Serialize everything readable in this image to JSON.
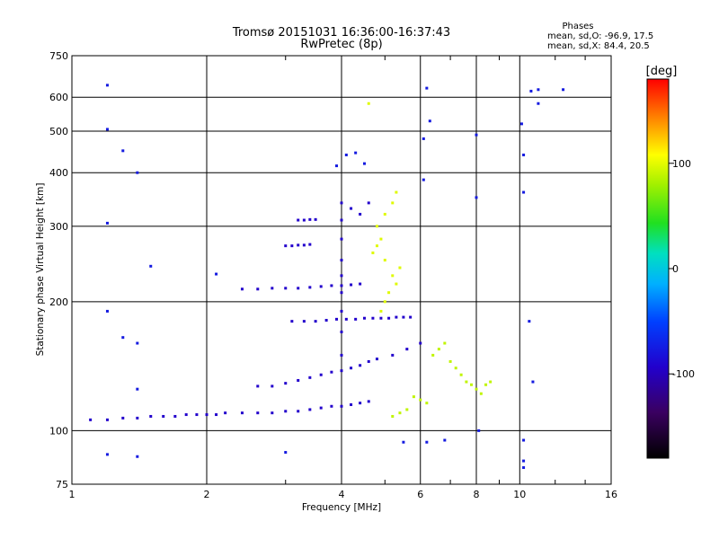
{
  "chart_data": {
    "type": "scatter",
    "title": "Tromsø 20151031 16:36:00-16:37:43",
    "subtitle": "RwPretec (8p)",
    "stats": {
      "header": "Phases",
      "line1": "mean, sd,O: -96.9, 17.5",
      "line2": "mean, sd,X:  84.4, 20.5"
    },
    "xlabel": "Frequency [MHz]",
    "ylabel": "Stationary phase Virtual Height [km]",
    "xscale": "log",
    "yscale": "log",
    "xlim": [
      1,
      16
    ],
    "ylim": [
      75,
      750
    ],
    "xticks": [
      1,
      2,
      4,
      6,
      8,
      10,
      16
    ],
    "xtick_labels": [
      "1",
      "2",
      "4",
      "6",
      "8",
      "10",
      "16"
    ],
    "yticks": [
      75,
      100,
      200,
      300,
      400,
      500,
      600,
      750
    ],
    "ytick_labels": [
      "75",
      "100",
      "200",
      "300",
      "400",
      "500",
      "600",
      "750"
    ],
    "grid": true,
    "colorbar": {
      "label": "[deg]",
      "range": [
        -180,
        180
      ],
      "ticks": [
        100,
        0,
        -100
      ],
      "tick_labels": [
        "100",
        "0",
        "-100"
      ]
    },
    "clusters": [
      {
        "name": "e-layer-trace",
        "phase": -100,
        "points": [
          [
            1.1,
            106
          ],
          [
            1.2,
            106
          ],
          [
            1.3,
            107
          ],
          [
            1.4,
            107
          ],
          [
            1.5,
            108
          ],
          [
            1.6,
            108
          ],
          [
            1.7,
            108
          ],
          [
            1.8,
            109
          ],
          [
            1.9,
            109
          ],
          [
            2.0,
            109
          ],
          [
            2.1,
            109
          ],
          [
            2.2,
            110
          ],
          [
            2.4,
            110
          ],
          [
            2.6,
            110
          ],
          [
            2.8,
            110
          ],
          [
            3.0,
            111
          ],
          [
            3.2,
            111
          ],
          [
            3.4,
            112
          ],
          [
            3.6,
            113
          ],
          [
            3.8,
            114
          ],
          [
            4.0,
            114
          ],
          [
            4.2,
            115
          ],
          [
            4.4,
            116
          ],
          [
            4.6,
            117
          ]
        ]
      },
      {
        "name": "e-layer-echo-2",
        "phase": -100,
        "points": [
          [
            2.6,
            127
          ],
          [
            2.8,
            127
          ],
          [
            3.0,
            129
          ],
          [
            3.2,
            131
          ],
          [
            3.4,
            133
          ],
          [
            3.6,
            135
          ],
          [
            3.8,
            137
          ],
          [
            4.0,
            138
          ],
          [
            4.2,
            140
          ],
          [
            4.4,
            142
          ],
          [
            4.6,
            145
          ],
          [
            4.8,
            147
          ],
          [
            5.2,
            150
          ],
          [
            5.6,
            155
          ],
          [
            6.0,
            160
          ]
        ]
      },
      {
        "name": "f-layer-trace-180",
        "phase": -100,
        "points": [
          [
            3.1,
            180
          ],
          [
            3.3,
            180
          ],
          [
            3.5,
            180
          ],
          [
            3.7,
            181
          ],
          [
            3.9,
            182
          ],
          [
            4.1,
            182
          ],
          [
            4.3,
            182
          ],
          [
            4.5,
            183
          ],
          [
            4.7,
            183
          ],
          [
            4.9,
            183
          ],
          [
            5.1,
            183
          ],
          [
            5.3,
            184
          ],
          [
            5.5,
            184
          ],
          [
            5.7,
            184
          ]
        ]
      },
      {
        "name": "f-layer-trace-215",
        "phase": -100,
        "points": [
          [
            2.4,
            214
          ],
          [
            2.6,
            214
          ],
          [
            2.8,
            215
          ],
          [
            3.0,
            215
          ],
          [
            3.2,
            215
          ],
          [
            3.4,
            216
          ],
          [
            3.6,
            217
          ],
          [
            3.8,
            218
          ],
          [
            4.0,
            218
          ],
          [
            4.2,
            219
          ],
          [
            4.4,
            220
          ]
        ]
      },
      {
        "name": "f-layer-trace-270",
        "phase": -100,
        "points": [
          [
            3.0,
            270
          ],
          [
            3.1,
            270
          ],
          [
            3.2,
            271
          ],
          [
            3.3,
            271
          ],
          [
            3.4,
            272
          ]
        ]
      },
      {
        "name": "f-layer-trace-310",
        "phase": -100,
        "points": [
          [
            3.2,
            310
          ],
          [
            3.3,
            310
          ],
          [
            3.4,
            311
          ],
          [
            3.5,
            311
          ]
        ]
      },
      {
        "name": "f-layer-column-4mhz",
        "phase": -100,
        "points": [
          [
            4.0,
            150
          ],
          [
            4.0,
            170
          ],
          [
            4.0,
            190
          ],
          [
            4.0,
            210
          ],
          [
            4.0,
            230
          ],
          [
            4.0,
            250
          ],
          [
            4.0,
            280
          ],
          [
            4.0,
            310
          ],
          [
            4.0,
            340
          ],
          [
            4.2,
            330
          ],
          [
            4.4,
            320
          ],
          [
            4.6,
            340
          ]
        ]
      },
      {
        "name": "x-mode-yellow-column",
        "phase": 100,
        "points": [
          [
            4.7,
            260
          ],
          [
            4.8,
            270
          ],
          [
            4.9,
            280
          ],
          [
            5.0,
            250
          ],
          [
            5.2,
            230
          ],
          [
            5.1,
            210
          ],
          [
            5.3,
            220
          ],
          [
            4.9,
            190
          ],
          [
            5.0,
            200
          ],
          [
            5.4,
            240
          ],
          [
            4.8,
            300
          ],
          [
            5.0,
            320
          ],
          [
            5.2,
            340
          ],
          [
            5.3,
            360
          ],
          [
            4.6,
            580
          ]
        ]
      },
      {
        "name": "x-mode-high-freq",
        "phase": 90,
        "points": [
          [
            6.4,
            150
          ],
          [
            6.6,
            155
          ],
          [
            6.8,
            160
          ],
          [
            7.0,
            145
          ],
          [
            7.2,
            140
          ],
          [
            7.4,
            135
          ],
          [
            7.6,
            130
          ],
          [
            7.8,
            128
          ],
          [
            8.0,
            125
          ],
          [
            8.2,
            122
          ],
          [
            8.4,
            128
          ],
          [
            8.6,
            130
          ],
          [
            5.8,
            120
          ],
          [
            6.0,
            118
          ],
          [
            6.2,
            116
          ],
          [
            5.6,
            112
          ],
          [
            5.4,
            110
          ],
          [
            5.2,
            108
          ]
        ]
      },
      {
        "name": "scattered-mixed",
        "phase": -80,
        "points": [
          [
            1.2,
            640
          ],
          [
            1.2,
            505
          ],
          [
            1.3,
            450
          ],
          [
            1.4,
            400
          ],
          [
            1.2,
            305
          ],
          [
            1.2,
            190
          ],
          [
            1.3,
            165
          ],
          [
            1.4,
            160
          ],
          [
            1.4,
            125
          ],
          [
            1.5,
            242
          ],
          [
            2.1,
            232
          ],
          [
            3.9,
            415
          ],
          [
            4.1,
            440
          ],
          [
            4.3,
            445
          ],
          [
            4.5,
            420
          ],
          [
            6.2,
            630
          ],
          [
            6.3,
            528
          ],
          [
            6.1,
            480
          ],
          [
            6.1,
            385
          ],
          [
            8.0,
            350
          ],
          [
            8.0,
            490
          ],
          [
            10.1,
            520
          ],
          [
            10.2,
            440
          ],
          [
            10.2,
            360
          ],
          [
            11.0,
            580
          ],
          [
            11.0,
            625
          ],
          [
            10.6,
            620
          ],
          [
            12.5,
            625
          ],
          [
            10.5,
            180
          ],
          [
            10.7,
            130
          ],
          [
            1.2,
            88
          ],
          [
            1.4,
            87
          ],
          [
            3.0,
            89
          ],
          [
            5.5,
            94
          ],
          [
            6.2,
            94
          ],
          [
            6.8,
            95
          ],
          [
            8.1,
            100
          ],
          [
            10.2,
            95
          ],
          [
            10.2,
            85
          ],
          [
            10.2,
            82
          ]
        ]
      }
    ]
  }
}
